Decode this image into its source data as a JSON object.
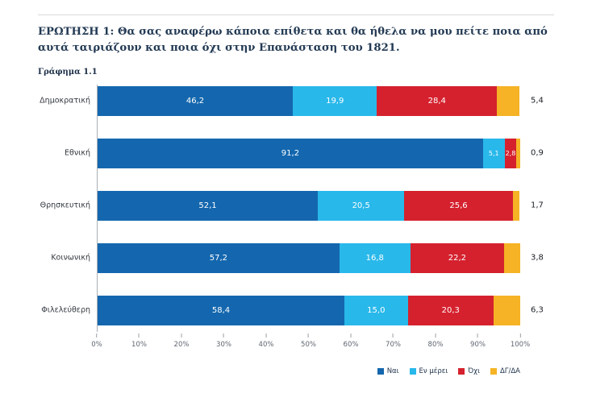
{
  "header": {
    "title": "ΕΡΩΤΗΣΗ 1: Θα σας αναφέρω κάποια επίθετα και θα ήθελα να μου πείτε ποια από αυτά ταιριάζουν και ποια όχι στην Επανάσταση του 1821.",
    "figure_label": "Γράφημα 1.1"
  },
  "chart_data": {
    "type": "bar",
    "orientation": "horizontal-stacked",
    "title": "Γράφημα 1.1",
    "categories": [
      "Δημοκρατική",
      "Εθνική",
      "Θρησκευτική",
      "Κοινωνική",
      "Φιλελεύθερη"
    ],
    "series": [
      {
        "name": "Ναι",
        "color": "#1467ae",
        "label_position": "inside",
        "values": [
          46.2,
          91.2,
          52.1,
          57.2,
          58.4
        ]
      },
      {
        "name": "Εν μέρει",
        "color": "#29b8ea",
        "label_position": "inside",
        "values": [
          19.9,
          5.1,
          20.5,
          16.8,
          15.0
        ]
      },
      {
        "name": "Όχι",
        "color": "#d5212e",
        "label_position": "inside",
        "values": [
          28.4,
          2.8,
          25.6,
          22.2,
          20.3
        ]
      },
      {
        "name": "ΔΓ/ΔΑ",
        "color": "#f5b325",
        "label_position": "outside",
        "values": [
          5.4,
          0.9,
          1.7,
          3.8,
          6.3
        ]
      }
    ],
    "x_ticks": [
      "0%",
      "10%",
      "20%",
      "30%",
      "40%",
      "50%",
      "60%",
      "70%",
      "80%",
      "90%",
      "100%"
    ],
    "x_range": [
      0,
      100
    ],
    "value_format": "comma-decimal-1",
    "grid": false,
    "legend_position": "bottom-right"
  }
}
